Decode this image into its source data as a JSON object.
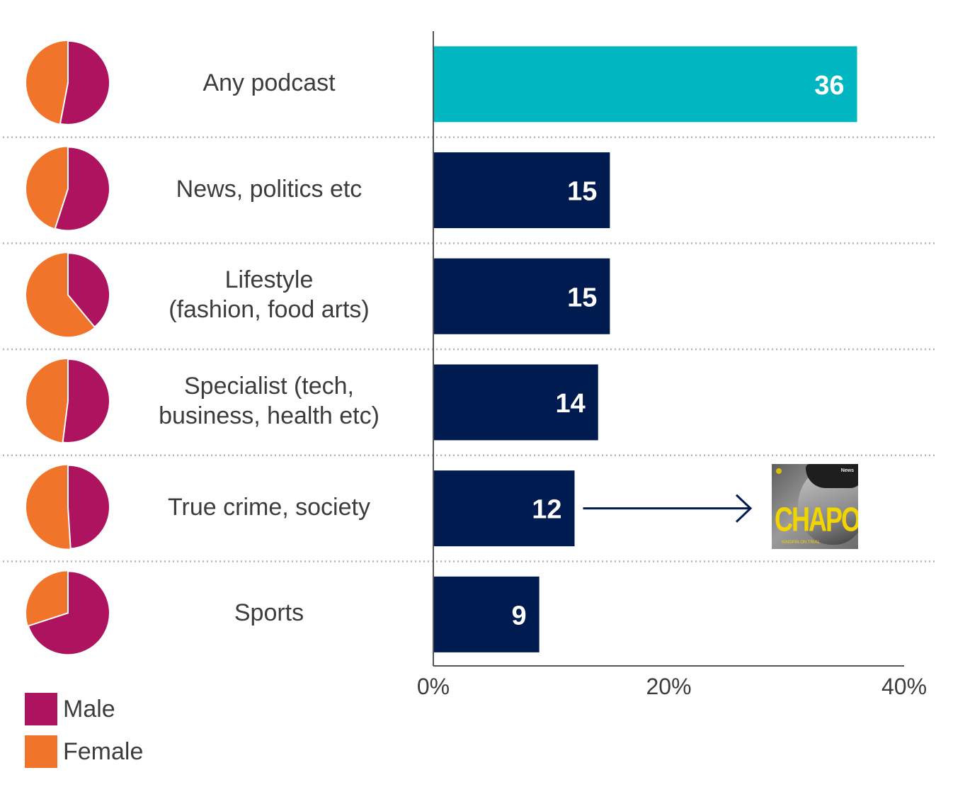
{
  "chart_data": {
    "type": "bar",
    "orientation": "horizontal",
    "categories": [
      "Any podcast",
      "News, politics etc",
      "Lifestyle\n(fashion, food arts)",
      "Specialist (tech,\nbusiness, health etc)",
      "True crime, society",
      "Sports"
    ],
    "values": [
      36,
      15,
      15,
      14,
      12,
      9
    ],
    "value_labels": [
      "36",
      "15",
      "15",
      "14",
      "12",
      "9"
    ],
    "xlim": [
      0,
      40
    ],
    "xticks": [
      0,
      20,
      40
    ],
    "xtick_labels": [
      "0%",
      "20%",
      "40%"
    ],
    "bar_colors": [
      "#00b7c1",
      "#001b4f",
      "#001b4f",
      "#001b4f",
      "#001b4f",
      "#001b4f"
    ],
    "pies": [
      {
        "category": "Any podcast",
        "male": 53,
        "female": 47
      },
      {
        "category": "News, politics etc",
        "male": 55,
        "female": 45
      },
      {
        "category": "Lifestyle (fashion, food arts)",
        "male": 39,
        "female": 61
      },
      {
        "category": "Specialist (tech, business, health etc)",
        "male": 52,
        "female": 48
      },
      {
        "category": "True crime, society",
        "male": 49,
        "female": 51
      },
      {
        "category": "Sports",
        "male": 70,
        "female": 30
      }
    ],
    "legend": [
      {
        "label": "Male",
        "color": "#ad135f"
      },
      {
        "label": "Female",
        "color": "#f0752b"
      }
    ],
    "annotation": {
      "category": "True crime, society",
      "image_title": "CHAPO",
      "image_subtitle": "KINGPIN ON TRIAL",
      "image_brand": "News"
    }
  },
  "colors": {
    "male": "#ad135f",
    "female": "#f0752b",
    "highlight_bar": "#00b7c1",
    "bar": "#001b4f",
    "separator": "#b5b5b5",
    "axis": "#555555"
  }
}
